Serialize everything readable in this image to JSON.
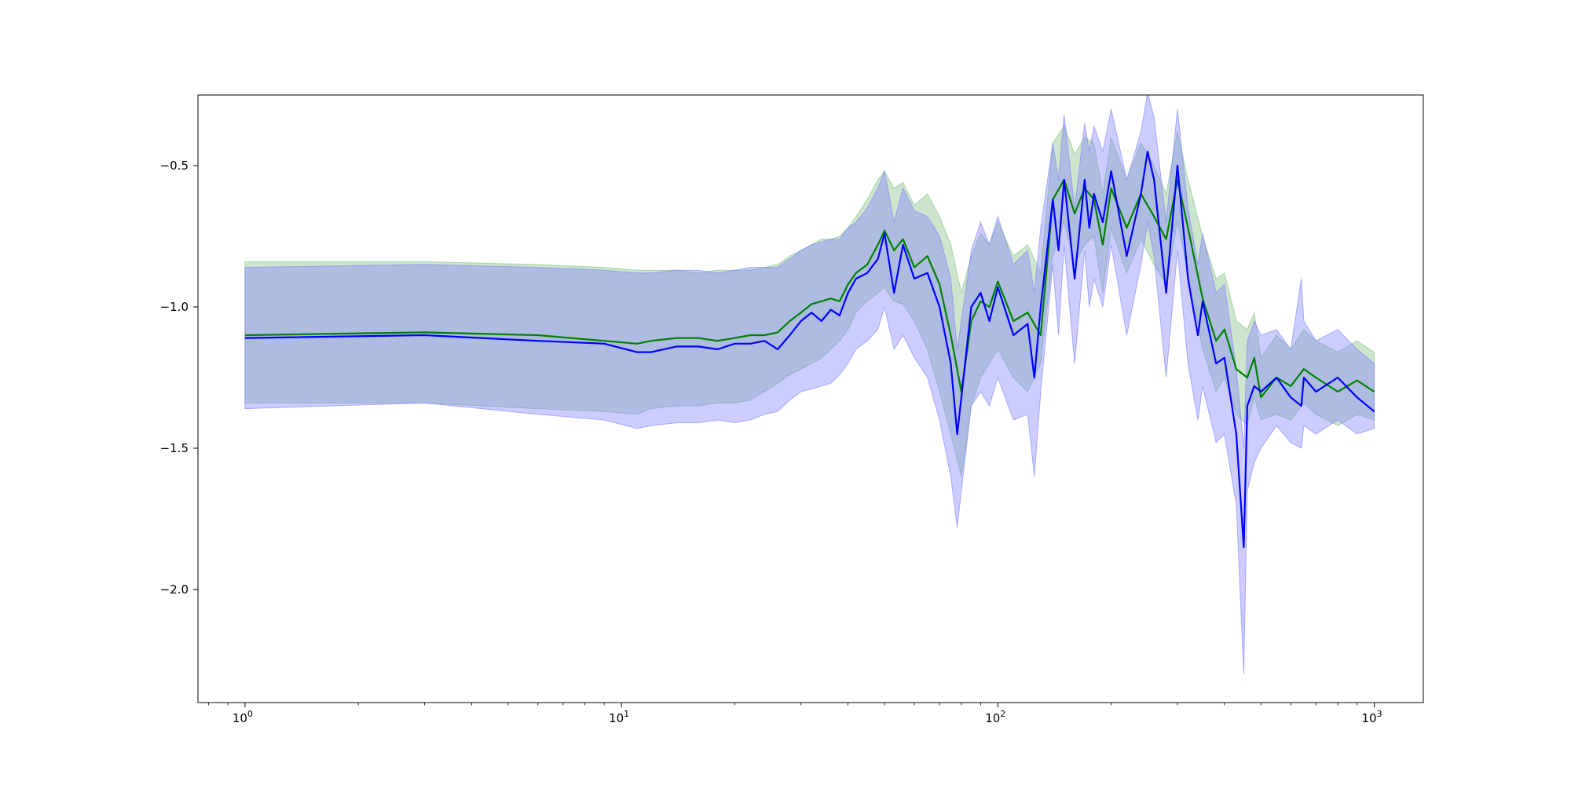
{
  "chart_data": {
    "type": "area",
    "x_scale": "log",
    "xlim": [
      0.75,
      1350
    ],
    "ylim": [
      -2.4,
      -0.25
    ],
    "x_ticks": [
      {
        "value": 1,
        "base": "10",
        "exp": "0"
      },
      {
        "value": 10,
        "base": "10",
        "exp": "1"
      },
      {
        "value": 100,
        "base": "10",
        "exp": "2"
      },
      {
        "value": 1000,
        "base": "10",
        "exp": "3"
      }
    ],
    "y_ticks": [
      {
        "value": -0.5,
        "label": "−0.5"
      },
      {
        "value": -1.0,
        "label": "−1.0"
      },
      {
        "value": -1.5,
        "label": "−1.5"
      },
      {
        "value": -2.0,
        "label": "−2.0"
      }
    ],
    "grid": false,
    "series": [
      {
        "color": "#008000",
        "band_color": "#7fbf7f",
        "x": [
          1,
          3,
          6,
          9,
          11,
          12,
          14,
          16,
          18,
          20,
          22,
          24,
          26,
          28,
          30,
          32,
          34,
          36,
          38,
          40,
          42,
          45,
          48,
          50,
          53,
          56,
          60,
          65,
          70,
          75,
          80,
          85,
          90,
          95,
          100,
          110,
          120,
          130,
          140,
          150,
          160,
          170,
          180,
          190,
          200,
          220,
          240,
          260,
          280,
          300,
          320,
          350,
          380,
          400,
          430,
          460,
          480,
          500,
          550,
          600,
          650,
          700,
          800,
          900,
          1000
        ],
        "y": [
          -1.1,
          -1.09,
          -1.1,
          -1.12,
          -1.13,
          -1.12,
          -1.11,
          -1.11,
          -1.12,
          -1.11,
          -1.1,
          -1.1,
          -1.09,
          -1.05,
          -1.02,
          -0.99,
          -0.98,
          -0.97,
          -0.98,
          -0.92,
          -0.88,
          -0.85,
          -0.78,
          -0.73,
          -0.8,
          -0.76,
          -0.86,
          -0.82,
          -0.92,
          -1.1,
          -1.3,
          -1.05,
          -0.98,
          -1.0,
          -0.91,
          -1.05,
          -1.02,
          -1.1,
          -0.62,
          -0.55,
          -0.67,
          -0.58,
          -0.62,
          -0.78,
          -0.58,
          -0.72,
          -0.6,
          -0.68,
          -0.76,
          -0.55,
          -0.72,
          -0.97,
          -1.12,
          -1.08,
          -1.22,
          -1.25,
          -1.18,
          -1.32,
          -1.25,
          -1.28,
          -1.22,
          -1.25,
          -1.3,
          -1.26,
          -1.3
        ],
        "lower": [
          -1.34,
          -1.34,
          -1.36,
          -1.37,
          -1.38,
          -1.36,
          -1.35,
          -1.35,
          -1.34,
          -1.34,
          -1.33,
          -1.3,
          -1.27,
          -1.24,
          -1.22,
          -1.2,
          -1.18,
          -1.15,
          -1.12,
          -1.08,
          -1.02,
          -0.98,
          -0.95,
          -0.93,
          -0.98,
          -0.99,
          -1.05,
          -1.15,
          -1.3,
          -1.45,
          -1.6,
          -1.35,
          -1.25,
          -1.2,
          -1.15,
          -1.25,
          -1.3,
          -1.2,
          -0.82,
          -0.7,
          -0.85,
          -0.78,
          -0.75,
          -0.95,
          -0.72,
          -0.88,
          -0.76,
          -0.85,
          -0.92,
          -0.7,
          -0.88,
          -1.15,
          -1.3,
          -1.25,
          -1.38,
          -1.42,
          -1.32,
          -1.4,
          -1.38,
          -1.4,
          -1.34,
          -1.38,
          -1.42,
          -1.38,
          -1.4
        ],
        "upper": [
          -0.84,
          -0.84,
          -0.85,
          -0.86,
          -0.87,
          -0.87,
          -0.87,
          -0.88,
          -0.87,
          -0.87,
          -0.87,
          -0.86,
          -0.85,
          -0.82,
          -0.8,
          -0.78,
          -0.76,
          -0.76,
          -0.75,
          -0.72,
          -0.68,
          -0.62,
          -0.55,
          -0.52,
          -0.58,
          -0.56,
          -0.64,
          -0.6,
          -0.68,
          -0.78,
          -0.95,
          -0.82,
          -0.74,
          -0.78,
          -0.7,
          -0.82,
          -0.78,
          -0.88,
          -0.42,
          -0.36,
          -0.46,
          -0.4,
          -0.42,
          -0.6,
          -0.4,
          -0.55,
          -0.42,
          -0.5,
          -0.6,
          -0.38,
          -0.55,
          -0.75,
          -0.9,
          -0.88,
          -1.05,
          -1.08,
          -1.02,
          -1.18,
          -1.1,
          -1.15,
          -1.08,
          -1.12,
          -1.16,
          -1.12,
          -1.16
        ]
      },
      {
        "color": "#0000ff",
        "band_color": "#7f7fff",
        "x": [
          1,
          3,
          6,
          9,
          11,
          12,
          14,
          16,
          18,
          20,
          22,
          24,
          26,
          28,
          30,
          32,
          34,
          36,
          38,
          40,
          42,
          45,
          48,
          50,
          53,
          56,
          60,
          65,
          70,
          75,
          78,
          80,
          85,
          90,
          95,
          100,
          110,
          120,
          125,
          130,
          140,
          145,
          150,
          160,
          170,
          175,
          180,
          190,
          200,
          220,
          240,
          250,
          260,
          280,
          300,
          320,
          340,
          350,
          380,
          400,
          430,
          450,
          460,
          480,
          500,
          550,
          600,
          640,
          650,
          700,
          800,
          900,
          1000
        ],
        "y": [
          -1.11,
          -1.1,
          -1.12,
          -1.13,
          -1.16,
          -1.16,
          -1.14,
          -1.14,
          -1.15,
          -1.13,
          -1.13,
          -1.12,
          -1.15,
          -1.1,
          -1.05,
          -1.02,
          -1.05,
          -1.01,
          -1.03,
          -0.95,
          -0.9,
          -0.88,
          -0.83,
          -0.74,
          -0.95,
          -0.78,
          -0.9,
          -0.88,
          -1.0,
          -1.2,
          -1.45,
          -1.32,
          -1.0,
          -0.95,
          -1.05,
          -0.93,
          -1.1,
          -1.06,
          -1.25,
          -1.0,
          -0.62,
          -0.8,
          -0.55,
          -0.9,
          -0.55,
          -0.72,
          -0.6,
          -0.7,
          -0.52,
          -0.82,
          -0.6,
          -0.45,
          -0.55,
          -0.95,
          -0.5,
          -0.9,
          -1.1,
          -0.98,
          -1.2,
          -1.18,
          -1.45,
          -1.85,
          -1.35,
          -1.28,
          -1.3,
          -1.25,
          -1.32,
          -1.35,
          -1.25,
          -1.3,
          -1.25,
          -1.32,
          -1.37
        ],
        "lower": [
          -1.36,
          -1.34,
          -1.38,
          -1.4,
          -1.43,
          -1.42,
          -1.41,
          -1.41,
          -1.4,
          -1.41,
          -1.4,
          -1.38,
          -1.37,
          -1.33,
          -1.3,
          -1.29,
          -1.28,
          -1.27,
          -1.24,
          -1.2,
          -1.15,
          -1.12,
          -1.08,
          -1.0,
          -1.15,
          -1.1,
          -1.18,
          -1.25,
          -1.4,
          -1.6,
          -1.78,
          -1.65,
          -1.35,
          -1.3,
          -1.35,
          -1.25,
          -1.4,
          -1.38,
          -1.6,
          -1.3,
          -0.85,
          -1.1,
          -0.78,
          -1.2,
          -0.8,
          -1.0,
          -0.9,
          -1.0,
          -0.78,
          -1.1,
          -0.85,
          -0.7,
          -0.82,
          -1.25,
          -0.8,
          -1.2,
          -1.4,
          -1.28,
          -1.48,
          -1.45,
          -1.7,
          -2.3,
          -1.65,
          -1.55,
          -1.5,
          -1.42,
          -1.48,
          -1.5,
          -1.42,
          -1.45,
          -1.4,
          -1.45,
          -1.43
        ],
        "upper": [
          -0.86,
          -0.85,
          -0.86,
          -0.87,
          -0.88,
          -0.88,
          -0.87,
          -0.87,
          -0.88,
          -0.87,
          -0.86,
          -0.86,
          -0.86,
          -0.83,
          -0.8,
          -0.78,
          -0.77,
          -0.76,
          -0.76,
          -0.72,
          -0.7,
          -0.65,
          -0.58,
          -0.52,
          -0.7,
          -0.58,
          -0.66,
          -0.68,
          -0.75,
          -0.9,
          -1.15,
          -1.05,
          -0.8,
          -0.7,
          -0.78,
          -0.68,
          -0.85,
          -0.8,
          -0.95,
          -0.72,
          -0.42,
          -0.55,
          -0.32,
          -0.65,
          -0.35,
          -0.45,
          -0.36,
          -0.45,
          -0.3,
          -0.55,
          -0.38,
          -0.24,
          -0.33,
          -0.7,
          -0.3,
          -0.65,
          -0.85,
          -0.74,
          -0.95,
          -0.92,
          -1.22,
          -1.5,
          -1.12,
          -1.05,
          -1.1,
          -1.08,
          -1.15,
          -0.9,
          -1.05,
          -1.12,
          -1.08,
          -1.15,
          -1.2
        ]
      }
    ]
  }
}
